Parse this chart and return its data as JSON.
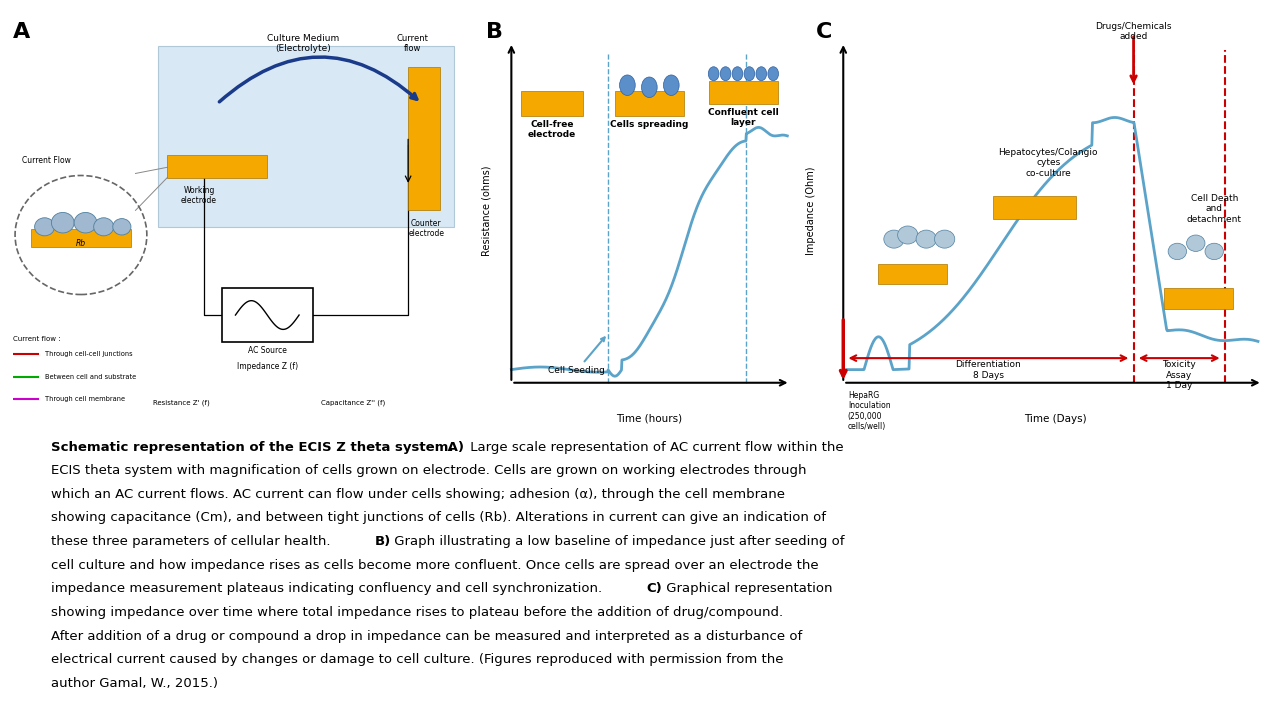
{
  "background_color": "#ffffff",
  "panel_A_label": "A",
  "panel_B_label": "B",
  "panel_C_label": "C",
  "panel_B_xlabel": "Time (hours)",
  "panel_B_ylabel": "Resistance (ohms)",
  "panel_C_xlabel": "Time (Days)",
  "panel_C_ylabel": "Impedance (Ohm)",
  "blue_curve_color": "#5ba3c9",
  "electrode_color": "#F5A800",
  "cell_color": "#5b8fc9",
  "red_arrow_color": "#cc0000",
  "dashed_blue_color": "#5ba3c9",
  "dashed_red_color": "#cc0000",
  "medium_color": "#d8e8f5",
  "label_B_cell_free": "Cell-free\nelectrode",
  "label_B_cells_spreading": "Cells spreading",
  "label_B_confluent": "Confluent cell\nlayer",
  "label_B_cell_seeding": "Cell Seeding",
  "label_C_differentiation": "Differentiation\n8 Days",
  "label_C_toxicity": "Toxicity\nAssay\n1 Day",
  "label_C_hepato": "Hepatocytes/Colangio\ncytes\nco-culture",
  "label_C_cell_death": "Cell Death\nand\ndetachment",
  "label_C_drugs": "Drugs/Chemicals\nadded",
  "label_C_heparg": "HepaRG\nInoculation\n(250,000\ncells/well)"
}
